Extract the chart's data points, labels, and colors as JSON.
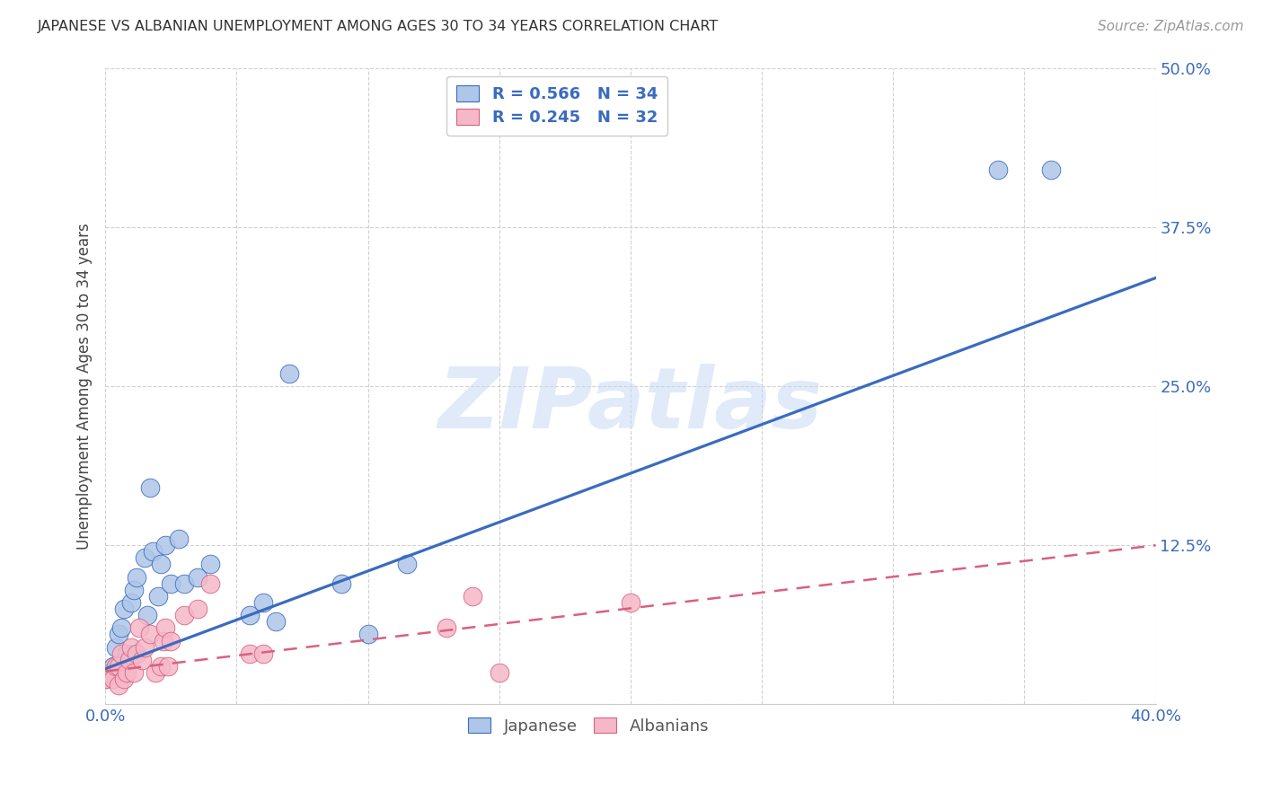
{
  "title": "JAPANESE VS ALBANIAN UNEMPLOYMENT AMONG AGES 30 TO 34 YEARS CORRELATION CHART",
  "source": "Source: ZipAtlas.com",
  "ylabel": "Unemployment Among Ages 30 to 34 years",
  "watermark": "ZIPatlas",
  "xlim": [
    0.0,
    0.4
  ],
  "ylim": [
    0.0,
    0.5
  ],
  "xticks": [
    0.0,
    0.05,
    0.1,
    0.15,
    0.2,
    0.25,
    0.3,
    0.35,
    0.4
  ],
  "yticks": [
    0.0,
    0.125,
    0.25,
    0.375,
    0.5
  ],
  "japanese_R": 0.566,
  "japanese_N": 34,
  "albanian_R": 0.245,
  "albanian_N": 32,
  "japanese_color": "#aec6e8",
  "albanian_color": "#f5b8c8",
  "japanese_line_color": "#3a6bbf",
  "albanian_line_color": "#d96080",
  "legend_entries": [
    "Japanese",
    "Albanians"
  ],
  "japanese_x": [
    0.0,
    0.003,
    0.004,
    0.005,
    0.005,
    0.006,
    0.007,
    0.007,
    0.008,
    0.009,
    0.01,
    0.011,
    0.012,
    0.015,
    0.016,
    0.017,
    0.018,
    0.02,
    0.021,
    0.023,
    0.025,
    0.028,
    0.03,
    0.035,
    0.04,
    0.055,
    0.06,
    0.065,
    0.07,
    0.09,
    0.1,
    0.115,
    0.34,
    0.36
  ],
  "japanese_y": [
    0.02,
    0.03,
    0.045,
    0.025,
    0.055,
    0.06,
    0.03,
    0.075,
    0.04,
    0.035,
    0.08,
    0.09,
    0.1,
    0.115,
    0.07,
    0.17,
    0.12,
    0.085,
    0.11,
    0.125,
    0.095,
    0.13,
    0.095,
    0.1,
    0.11,
    0.07,
    0.08,
    0.065,
    0.26,
    0.095,
    0.055,
    0.11,
    0.42,
    0.42
  ],
  "albanian_x": [
    0.0,
    0.002,
    0.003,
    0.004,
    0.005,
    0.005,
    0.006,
    0.007,
    0.008,
    0.009,
    0.01,
    0.011,
    0.012,
    0.013,
    0.014,
    0.015,
    0.017,
    0.019,
    0.021,
    0.022,
    0.023,
    0.024,
    0.025,
    0.03,
    0.035,
    0.04,
    0.055,
    0.06,
    0.13,
    0.14,
    0.15,
    0.2
  ],
  "albanian_y": [
    0.02,
    0.025,
    0.02,
    0.03,
    0.03,
    0.015,
    0.04,
    0.02,
    0.025,
    0.035,
    0.045,
    0.025,
    0.04,
    0.06,
    0.035,
    0.045,
    0.055,
    0.025,
    0.03,
    0.05,
    0.06,
    0.03,
    0.05,
    0.07,
    0.075,
    0.095,
    0.04,
    0.04,
    0.06,
    0.085,
    0.025,
    0.08
  ],
  "jp_line_x0": 0.0,
  "jp_line_y0": 0.028,
  "jp_line_x1": 0.4,
  "jp_line_y1": 0.335,
  "al_line_x0": 0.0,
  "al_line_y0": 0.026,
  "al_line_x1": 0.4,
  "al_line_y1": 0.125
}
